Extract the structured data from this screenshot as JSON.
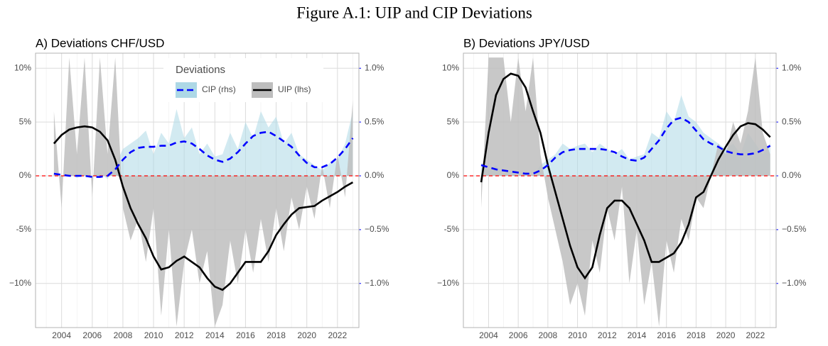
{
  "figure_title": "Figure A.1: UIP and CIP Deviations",
  "chart_data": [
    {
      "type": "line",
      "title": "A) Deviations CHF/USD",
      "legend_title": "Deviations",
      "x": [
        2003.5,
        2004,
        2004.5,
        2005,
        2005.5,
        2006,
        2006.5,
        2007,
        2007.5,
        2008,
        2008.5,
        2009,
        2009.5,
        2010,
        2010.5,
        2011,
        2011.5,
        2012,
        2012.5,
        2013,
        2013.5,
        2014,
        2014.5,
        2015,
        2015.5,
        2016,
        2016.5,
        2017,
        2017.5,
        2018,
        2018.5,
        2019,
        2019.5,
        2020,
        2020.5,
        2021,
        2021.5,
        2022,
        2022.5,
        2023
      ],
      "xlim": [
        2002.3,
        2023.4
      ],
      "xticks": [
        2004,
        2006,
        2008,
        2010,
        2012,
        2014,
        2016,
        2018,
        2020,
        2022
      ],
      "ylim": [
        -14.1,
        11.4
      ],
      "yticks": [
        {
          "value": -10,
          "label": "−10%"
        },
        {
          "value": -5,
          "label": "-5%"
        },
        {
          "value": 0,
          "label": "0%"
        },
        {
          "value": 5,
          "label": "5%"
        },
        {
          "value": 10,
          "label": "10%"
        }
      ],
      "y2lim": [
        -1.41,
        1.14
      ],
      "y2ticks": [
        {
          "value": -1,
          "label": "−1.0%"
        },
        {
          "value": -0.5,
          "label": "−0.5%"
        },
        {
          "value": 0,
          "label": "0.0%"
        },
        {
          "value": 0.5,
          "label": "0.5%"
        },
        {
          "value": 1,
          "label": "1.0%"
        }
      ],
      "grid": true,
      "hline": 0,
      "hline_color": "#ff0000",
      "series": [
        {
          "name": "CIP (rhs)",
          "axis": "y2",
          "color": "#0000ff",
          "linestyle": "dashed",
          "fill": "#add8e6",
          "values": [
            0.02,
            0.01,
            0.0,
            0.0,
            0.0,
            -0.01,
            -0.01,
            0.0,
            0.06,
            0.15,
            0.22,
            0.26,
            0.27,
            0.27,
            0.28,
            0.28,
            0.31,
            0.32,
            0.3,
            0.25,
            0.19,
            0.15,
            0.13,
            0.16,
            0.22,
            0.3,
            0.37,
            0.4,
            0.41,
            0.37,
            0.32,
            0.27,
            0.19,
            0.12,
            0.08,
            0.08,
            0.11,
            0.17,
            0.25,
            0.35
          ],
          "raw_values": [
            0.03,
            0.0,
            0.02,
            -0.02,
            0.01,
            0.0,
            0.03,
            -0.03,
            0.1,
            0.25,
            0.3,
            0.35,
            0.42,
            0.2,
            0.4,
            0.3,
            0.62,
            0.35,
            0.45,
            0.2,
            0.3,
            0.18,
            0.2,
            0.4,
            0.25,
            0.5,
            0.35,
            0.6,
            0.45,
            0.55,
            0.3,
            0.4,
            0.2,
            0.15,
            0.1,
            0.05,
            0.12,
            0.15,
            0.3,
            0.6
          ]
        },
        {
          "name": "UIP (lhs)",
          "color": "#000000",
          "linestyle": "solid",
          "fill": "#bebebe",
          "values": [
            3.0,
            3.8,
            4.3,
            4.5,
            4.6,
            4.5,
            4.1,
            3.3,
            1.5,
            -1.0,
            -3.0,
            -4.5,
            -5.8,
            -7.5,
            -8.7,
            -8.5,
            -7.9,
            -7.5,
            -8.0,
            -8.5,
            -9.5,
            -10.3,
            -10.6,
            -10.0,
            -9.0,
            -8.0,
            -8.0,
            -8.0,
            -7.0,
            -5.5,
            -4.5,
            -3.6,
            -3.0,
            -2.9,
            -2.8,
            -2.3,
            -1.9,
            -1.5,
            -1.0,
            -0.6
          ],
          "raw_values": [
            6,
            -3,
            11,
            2,
            11,
            -2,
            11,
            2,
            11,
            -3,
            -6,
            -4,
            -8,
            -3,
            -13,
            -5,
            -14,
            -8,
            -5,
            -10,
            -7,
            -14,
            -12,
            -6,
            -10,
            -5,
            -9,
            -4,
            -8,
            -3,
            -7,
            -2,
            -5,
            -1,
            -4,
            1,
            -3,
            2,
            -2,
            7
          ]
        }
      ]
    },
    {
      "type": "line",
      "title": "B) Deviations JPY/USD",
      "x": [
        2003.5,
        2004,
        2004.5,
        2005,
        2005.5,
        2006,
        2006.5,
        2007,
        2007.5,
        2008,
        2008.5,
        2009,
        2009.5,
        2010,
        2010.5,
        2011,
        2011.5,
        2012,
        2012.5,
        2013,
        2013.5,
        2014,
        2014.5,
        2015,
        2015.5,
        2016,
        2016.5,
        2017,
        2017.5,
        2018,
        2018.5,
        2019,
        2019.5,
        2020,
        2020.5,
        2021,
        2021.5,
        2022,
        2022.5,
        2023
      ],
      "xlim": [
        2002.3,
        2023.4
      ],
      "xticks": [
        2004,
        2006,
        2008,
        2010,
        2012,
        2014,
        2016,
        2018,
        2020,
        2022
      ],
      "ylim": [
        -14.1,
        11.4
      ],
      "yticks": [
        {
          "value": -10,
          "label": "−10%"
        },
        {
          "value": -5,
          "label": "-5%"
        },
        {
          "value": 0,
          "label": "0%"
        },
        {
          "value": 5,
          "label": "5%"
        },
        {
          "value": 10,
          "label": "10%"
        }
      ],
      "y2lim": [
        -1.41,
        1.14
      ],
      "y2ticks": [
        {
          "value": -1,
          "label": "−1.0%"
        },
        {
          "value": -0.5,
          "label": "−0.5%"
        },
        {
          "value": 0,
          "label": "0.0%"
        },
        {
          "value": 0.5,
          "label": "0.5%"
        },
        {
          "value": 1,
          "label": "1.0%"
        }
      ],
      "grid": true,
      "hline": 0,
      "hline_color": "#ff0000",
      "series": [
        {
          "axis": "y2",
          "color": "#0000ff",
          "linestyle": "dashed",
          "fill": "#add8e6",
          "values": [
            0.1,
            0.08,
            0.06,
            0.05,
            0.04,
            0.03,
            0.02,
            0.02,
            0.05,
            0.1,
            0.17,
            0.22,
            0.24,
            0.25,
            0.25,
            0.25,
            0.25,
            0.24,
            0.22,
            0.18,
            0.15,
            0.14,
            0.17,
            0.25,
            0.33,
            0.44,
            0.52,
            0.54,
            0.5,
            0.42,
            0.34,
            0.3,
            0.27,
            0.23,
            0.21,
            0.2,
            0.2,
            0.21,
            0.24,
            0.28
          ],
          "raw_values": [
            0.12,
            0.05,
            0.1,
            0.02,
            0.05,
            0.0,
            0.04,
            0.0,
            0.1,
            0.15,
            0.2,
            0.3,
            0.25,
            0.28,
            0.3,
            0.22,
            0.3,
            0.25,
            0.2,
            0.25,
            0.15,
            0.18,
            0.2,
            0.4,
            0.35,
            0.6,
            0.5,
            0.75,
            0.55,
            0.5,
            0.4,
            0.35,
            0.3,
            0.25,
            0.3,
            0.2,
            0.4,
            0.3,
            0.2,
            0.3
          ]
        },
        {
          "color": "#000000",
          "linestyle": "solid",
          "fill": "#bebebe",
          "values": [
            -0.6,
            4.0,
            7.5,
            9.0,
            9.5,
            9.3,
            8.2,
            6.0,
            4.0,
            1.0,
            -1.5,
            -4.0,
            -6.5,
            -8.5,
            -9.5,
            -8.5,
            -5.5,
            -3.0,
            -2.3,
            -2.3,
            -3.0,
            -4.5,
            -6.0,
            -8.0,
            -8.0,
            -7.6,
            -7.2,
            -6.2,
            -4.5,
            -2.0,
            -1.5,
            0.0,
            1.5,
            2.7,
            3.8,
            4.6,
            4.9,
            4.8,
            4.3,
            3.6
          ],
          "raw_values": [
            -3,
            11,
            11,
            11,
            5,
            11,
            6,
            11,
            2,
            -2,
            -5,
            -8,
            -12,
            -10,
            -13,
            -6,
            -9,
            -3,
            -6,
            -1,
            -10,
            -5,
            -12,
            -8,
            -14,
            -6,
            -9,
            -4,
            -6,
            -2,
            -3,
            0,
            3,
            2,
            5,
            3,
            6,
            11,
            4,
            2
          ]
        }
      ]
    }
  ]
}
